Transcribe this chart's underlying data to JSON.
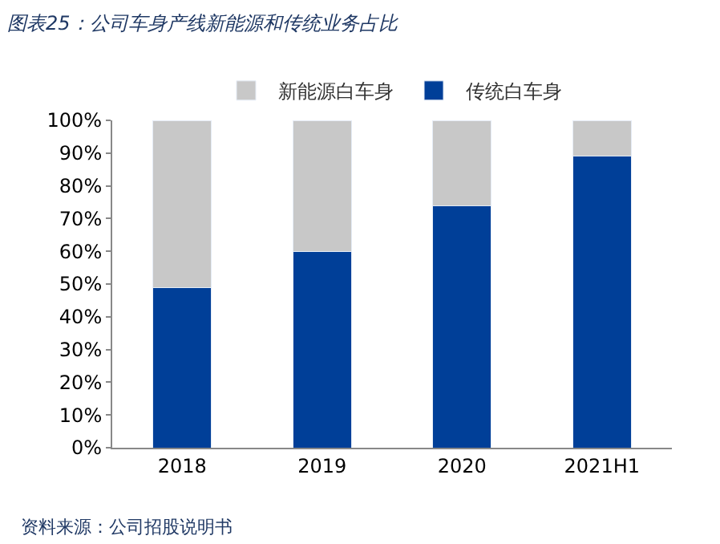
{
  "chart_data": {
    "type": "bar",
    "title": "图表25：公司车身产线新能源和传统业务占比",
    "categories": [
      "2018",
      "2019",
      "2020",
      "2021H1"
    ],
    "stacked": true,
    "series": [
      {
        "name": "传统白车身",
        "color": "#003f98",
        "values": [
          49,
          60,
          74,
          89
        ]
      },
      {
        "name": "新能源白车身",
        "color": "#c8c8c8",
        "values": [
          51,
          40,
          26,
          11
        ]
      }
    ],
    "ylim": [
      0,
      100
    ],
    "yticks": [
      {
        "value": 0,
        "label": "0%"
      },
      {
        "value": 10,
        "label": "10%"
      },
      {
        "value": 20,
        "label": "20%"
      },
      {
        "value": 30,
        "label": "30%"
      },
      {
        "value": 40,
        "label": "40%"
      },
      {
        "value": 50,
        "label": "50%"
      },
      {
        "value": 60,
        "label": "60%"
      },
      {
        "value": 70,
        "label": "70%"
      },
      {
        "value": 80,
        "label": "80%"
      },
      {
        "value": 90,
        "label": "90%"
      },
      {
        "value": 100,
        "label": "100%"
      }
    ],
    "legend": "top",
    "annotations": [
      "资料来源：公司招股说明书"
    ]
  }
}
